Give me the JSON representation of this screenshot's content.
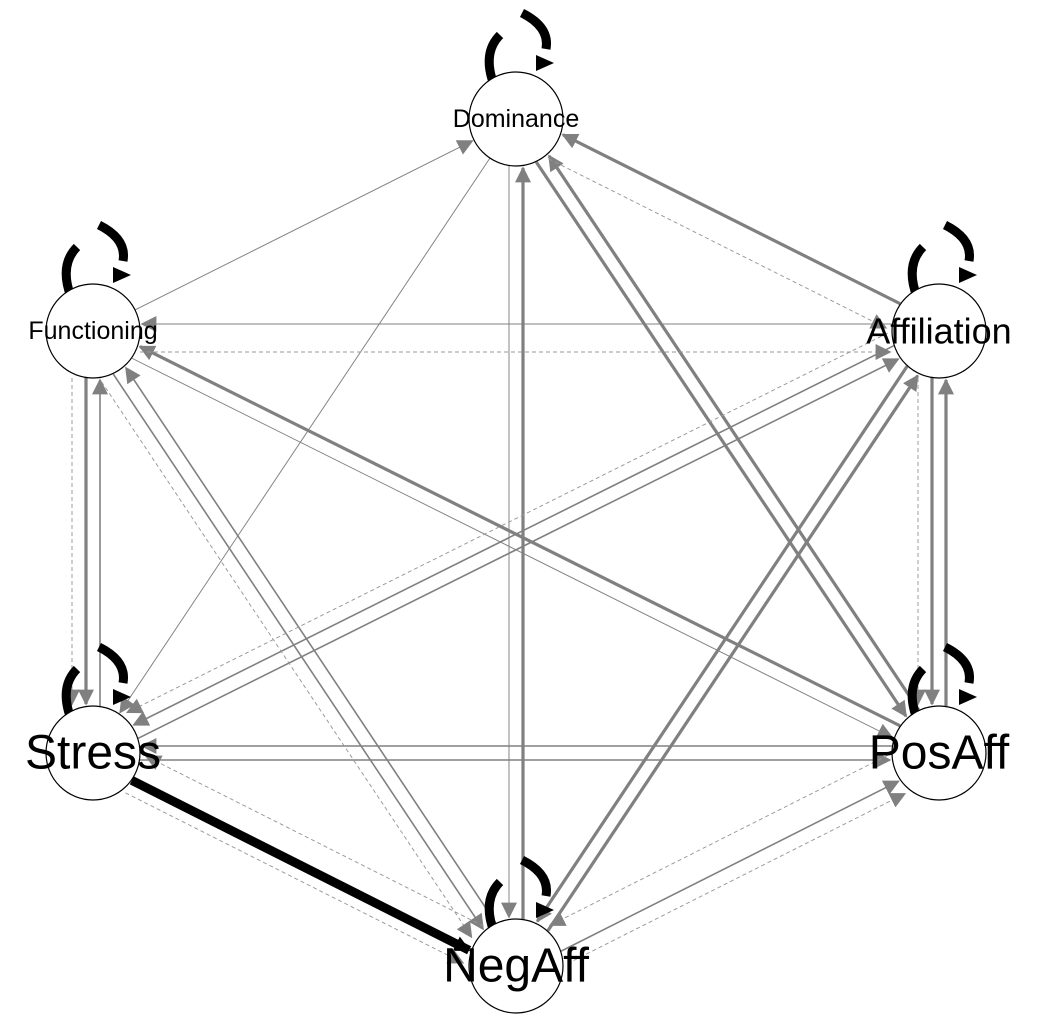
{
  "nodes": [
    {
      "id": "dominance",
      "label": "Dominance",
      "label_scale": "small"
    },
    {
      "id": "affiliation",
      "label": "Affiliation",
      "label_scale": "medium"
    },
    {
      "id": "posaff",
      "label": "PosAff",
      "label_scale": "large"
    },
    {
      "id": "negaff",
      "label": "NegAff",
      "label_scale": "large"
    },
    {
      "id": "stress",
      "label": "Stress",
      "label_scale": "large"
    },
    {
      "id": "functioning",
      "label": "Functioning",
      "label_scale": "small"
    }
  ],
  "edges": [
    {
      "from": "stress",
      "to": "negaff",
      "weight": 5,
      "style": "solid",
      "color": "#000000"
    },
    {
      "from": "negaff",
      "to": "dominance",
      "weight": 2,
      "style": "solid",
      "color": "#808080"
    },
    {
      "from": "negaff",
      "to": "affiliation",
      "weight": 2,
      "style": "solid",
      "color": "#808080"
    },
    {
      "from": "affiliation",
      "to": "negaff",
      "weight": 2,
      "style": "solid",
      "color": "#808080"
    },
    {
      "from": "dominance",
      "to": "posaff",
      "weight": 2,
      "style": "solid",
      "color": "#808080"
    },
    {
      "from": "posaff",
      "to": "dominance",
      "weight": 2,
      "style": "solid",
      "color": "#808080"
    },
    {
      "from": "affiliation",
      "to": "dominance",
      "weight": 2,
      "style": "solid",
      "color": "#808080"
    },
    {
      "from": "posaff",
      "to": "functioning",
      "weight": 2,
      "style": "solid",
      "color": "#808080"
    },
    {
      "from": "posaff",
      "to": "affiliation",
      "weight": 2,
      "style": "solid",
      "color": "#808080"
    },
    {
      "from": "affiliation",
      "to": "posaff",
      "weight": 2,
      "style": "solid",
      "color": "#808080"
    },
    {
      "from": "functioning",
      "to": "stress",
      "weight": 2,
      "style": "solid",
      "color": "#808080"
    },
    {
      "from": "stress",
      "to": "functioning",
      "weight": 1,
      "style": "solid",
      "color": "#808080"
    },
    {
      "from": "negaff",
      "to": "posaff",
      "weight": 1,
      "style": "solid",
      "color": "#808080"
    },
    {
      "from": "stress",
      "to": "affiliation",
      "weight": 1,
      "style": "solid",
      "color": "#808080"
    },
    {
      "from": "affiliation",
      "to": "stress",
      "weight": 1,
      "style": "solid",
      "color": "#808080"
    },
    {
      "from": "stress",
      "to": "posaff",
      "weight": 1,
      "style": "solid",
      "color": "#808080"
    },
    {
      "from": "posaff",
      "to": "stress",
      "weight": 1,
      "style": "solid",
      "color": "#808080"
    },
    {
      "from": "negaff",
      "to": "functioning",
      "weight": 1,
      "style": "solid",
      "color": "#808080"
    },
    {
      "from": "functioning",
      "to": "negaff",
      "weight": 1,
      "style": "solid",
      "color": "#808080"
    },
    {
      "from": "functioning",
      "to": "dominance",
      "weight": 0.6,
      "style": "solid",
      "color": "#808080"
    },
    {
      "from": "dominance",
      "to": "negaff",
      "weight": 0.6,
      "style": "solid",
      "color": "#808080"
    },
    {
      "from": "affiliation",
      "to": "functioning",
      "weight": 0.6,
      "style": "solid",
      "color": "#808080"
    },
    {
      "from": "functioning",
      "to": "posaff",
      "weight": 0.6,
      "style": "solid",
      "color": "#808080"
    },
    {
      "from": "dominance",
      "to": "stress",
      "weight": 0.6,
      "style": "solid",
      "color": "#808080"
    },
    {
      "from": "dominance",
      "to": "affiliation",
      "weight": 0.6,
      "style": "dashed",
      "color": "#999999"
    },
    {
      "from": "affiliation",
      "to": "stress",
      "weight": 0.6,
      "style": "dashed",
      "color": "#999999"
    },
    {
      "from": "functioning",
      "to": "affiliation",
      "weight": 0.6,
      "style": "dashed",
      "color": "#999999"
    },
    {
      "from": "affiliation",
      "to": "posaff",
      "weight": 0.6,
      "style": "dashed",
      "color": "#999999"
    },
    {
      "from": "stress",
      "to": "negaff",
      "weight": 0.6,
      "style": "dashed",
      "color": "#999999"
    },
    {
      "from": "negaff",
      "to": "stress",
      "weight": 0.6,
      "style": "dashed",
      "color": "#999999"
    },
    {
      "from": "negaff",
      "to": "posaff",
      "weight": 0.6,
      "style": "dashed",
      "color": "#999999"
    },
    {
      "from": "functioning",
      "to": "stress",
      "weight": 0.6,
      "style": "dashed",
      "color": "#999999"
    },
    {
      "from": "functioning",
      "to": "negaff",
      "weight": 0.6,
      "style": "dashed",
      "color": "#999999"
    },
    {
      "from": "posaff",
      "to": "negaff",
      "weight": 0.6,
      "style": "dashed",
      "color": "#999999"
    }
  ],
  "self_loops": [
    {
      "node": "dominance",
      "weight": 5
    },
    {
      "node": "affiliation",
      "weight": 5
    },
    {
      "node": "posaff",
      "weight": 5
    },
    {
      "node": "negaff",
      "weight": 5
    },
    {
      "node": "stress",
      "weight": 5
    },
    {
      "node": "functioning",
      "weight": 5
    }
  ],
  "colors": {
    "node_fill": "#ffffff",
    "node_stroke": "#000000",
    "label": "#000000"
  }
}
